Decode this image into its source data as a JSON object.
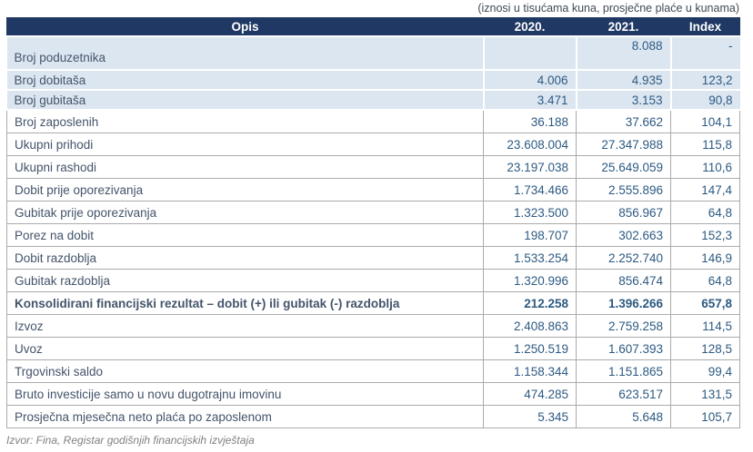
{
  "caption": "(iznosi u tisućama kuna, prosječne plaće u kunama)",
  "source_note": "Izvor: Fina, Registar godišnjih financijskih izvještaja",
  "colors": {
    "header_bg": "#1F3864",
    "header_text": "#FFFFFF",
    "highlight_row_bg": "#DCE6F1",
    "label_text": "#44546A",
    "number_text": "#2D5A82",
    "caption_text": "#404A57",
    "source_text": "#808080",
    "border": "#ABABAB"
  },
  "table": {
    "columns": [
      "Opis",
      "2020.",
      "2021.",
      "Index"
    ],
    "rows": [
      {
        "opis": "Broj poduzetnika",
        "y2020": "",
        "y2021": "8.088",
        "index": "-",
        "highlight": true,
        "tall": true,
        "bold": false
      },
      {
        "opis": "Broj dobitaša",
        "y2020": "4.006",
        "y2021": "4.935",
        "index": "123,2",
        "highlight": true,
        "tall": false,
        "bold": false
      },
      {
        "opis": "Broj gubitaša",
        "y2020": "3.471",
        "y2021": "3.153",
        "index": "90,8",
        "highlight": true,
        "tall": false,
        "bold": false
      },
      {
        "opis": "Broj zaposlenih",
        "y2020": "36.188",
        "y2021": "37.662",
        "index": "104,1",
        "highlight": false,
        "tall": false,
        "bold": false
      },
      {
        "opis": "Ukupni prihodi",
        "y2020": "23.608.004",
        "y2021": "27.347.988",
        "index": "115,8",
        "highlight": false,
        "tall": false,
        "bold": false
      },
      {
        "opis": "Ukupni rashodi",
        "y2020": "23.197.038",
        "y2021": "25.649.059",
        "index": "110,6",
        "highlight": false,
        "tall": false,
        "bold": false
      },
      {
        "opis": "Dobit prije oporezivanja",
        "y2020": "1.734.466",
        "y2021": "2.555.896",
        "index": "147,4",
        "highlight": false,
        "tall": false,
        "bold": false
      },
      {
        "opis": "Gubitak prije oporezivanja",
        "y2020": "1.323.500",
        "y2021": "856.967",
        "index": "64,8",
        "highlight": false,
        "tall": false,
        "bold": false
      },
      {
        "opis": "Porez na dobit",
        "y2020": "198.707",
        "y2021": "302.663",
        "index": "152,3",
        "highlight": false,
        "tall": false,
        "bold": false
      },
      {
        "opis": "Dobit razdoblja",
        "y2020": "1.533.254",
        "y2021": "2.252.740",
        "index": "146,9",
        "highlight": false,
        "tall": false,
        "bold": false
      },
      {
        "opis": "Gubitak razdoblja",
        "y2020": "1.320.996",
        "y2021": "856.474",
        "index": "64,8",
        "highlight": false,
        "tall": false,
        "bold": false
      },
      {
        "opis": "Konsolidirani financijski rezultat – dobit (+) ili gubitak (-) razdoblja",
        "y2020": "212.258",
        "y2021": "1.396.266",
        "index": "657,8",
        "highlight": false,
        "tall": false,
        "bold": true
      },
      {
        "opis": "Izvoz",
        "y2020": "2.408.863",
        "y2021": "2.759.258",
        "index": "114,5",
        "highlight": false,
        "tall": false,
        "bold": false
      },
      {
        "opis": "Uvoz",
        "y2020": "1.250.519",
        "y2021": "1.607.393",
        "index": "128,5",
        "highlight": false,
        "tall": false,
        "bold": false
      },
      {
        "opis": "Trgovinski saldo",
        "y2020": "1.158.344",
        "y2021": "1.151.865",
        "index": "99,4",
        "highlight": false,
        "tall": false,
        "bold": false
      },
      {
        "opis": "Bruto investicije samo u novu dugotrajnu imovinu",
        "y2020": "474.285",
        "y2021": "623.517",
        "index": "131,5",
        "highlight": false,
        "tall": false,
        "bold": false
      },
      {
        "opis": "Prosječna mjesečna neto plaća po zaposlenom",
        "y2020": "5.345",
        "y2021": "5.648",
        "index": "105,7",
        "highlight": false,
        "tall": false,
        "bold": false
      }
    ]
  }
}
